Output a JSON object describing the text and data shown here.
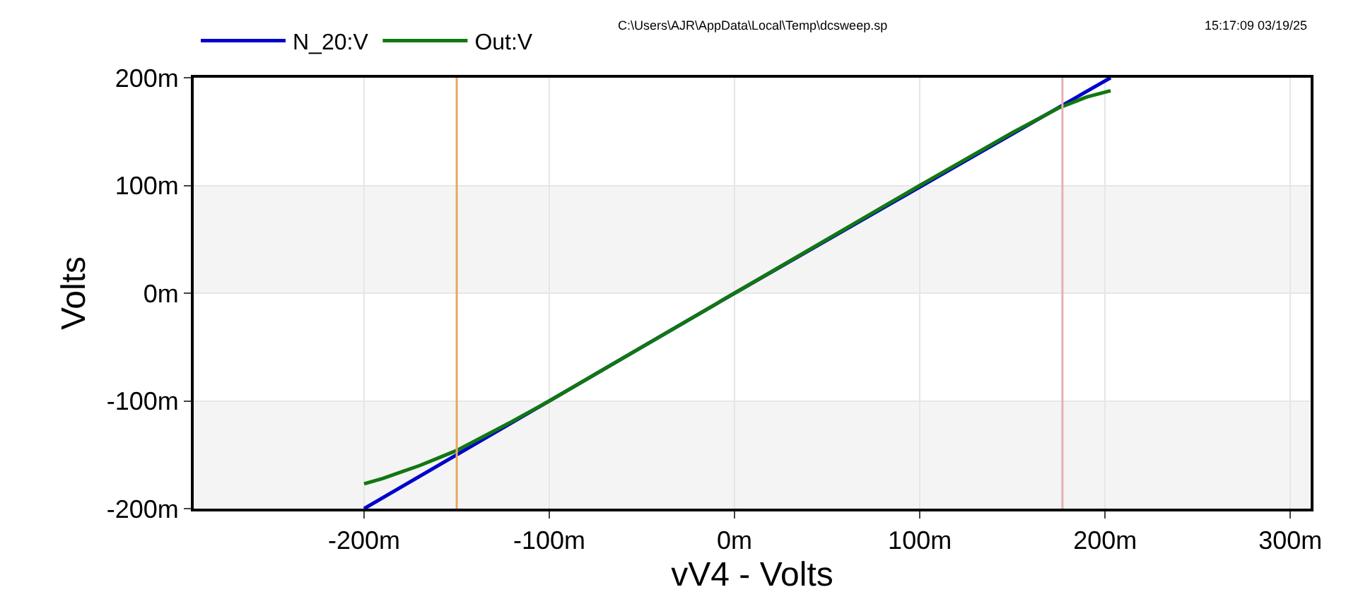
{
  "chart_data": {
    "type": "line",
    "xlabel": "vV4 - Volts",
    "ylabel": "Volts",
    "annotations": [
      "C:\\Users\\AJR\\AppData\\Local\\Temp\\dcsweep.sp",
      "15:17:09 03/19/25"
    ],
    "series": [
      {
        "name": "N_20:V",
        "color": "#0000cc",
        "x": [
          -200,
          0,
          203
        ],
        "values": [
          -200,
          0,
          200
        ]
      },
      {
        "name": "Out:V",
        "color": "#117711",
        "x": [
          -200,
          -190,
          -180,
          -170,
          -160,
          -150,
          -120,
          -100,
          0,
          100,
          150,
          175,
          190,
          203
        ],
        "values": [
          -177,
          -172,
          -166,
          -160,
          -153,
          -146,
          -119,
          -100,
          0,
          100,
          149,
          172,
          182,
          188
        ]
      }
    ],
    "xlim": [
      -292,
      311
    ],
    "ylim": [
      -200,
      200
    ],
    "xticks": [
      {
        "value": -200,
        "label": "-200m"
      },
      {
        "value": -100,
        "label": "-100m"
      },
      {
        "value": 0,
        "label": "0m"
      },
      {
        "value": 100,
        "label": "100m"
      },
      {
        "value": 200,
        "label": "200m"
      },
      {
        "value": 300,
        "label": "300m"
      }
    ],
    "yticks": [
      {
        "value": -200,
        "label": "-200m"
      },
      {
        "value": -100,
        "label": "-100m"
      },
      {
        "value": 0,
        "label": "0m"
      },
      {
        "value": 100,
        "label": "100m"
      },
      {
        "value": 200,
        "label": "200m"
      }
    ],
    "ref_lines": [
      {
        "axis": "x",
        "value": -150,
        "color": "#e8a860"
      },
      {
        "axis": "x",
        "value": 177,
        "color": "#e8b0b0"
      }
    ],
    "bands": [
      {
        "axis": "y",
        "from": 0,
        "to": 100,
        "color": "#f4f4f4"
      },
      {
        "axis": "y",
        "from": -200,
        "to": -100,
        "color": "#f4f4f4"
      }
    ],
    "grid": true,
    "legend": "top left",
    "line_style": "solid",
    "marker": "none"
  }
}
